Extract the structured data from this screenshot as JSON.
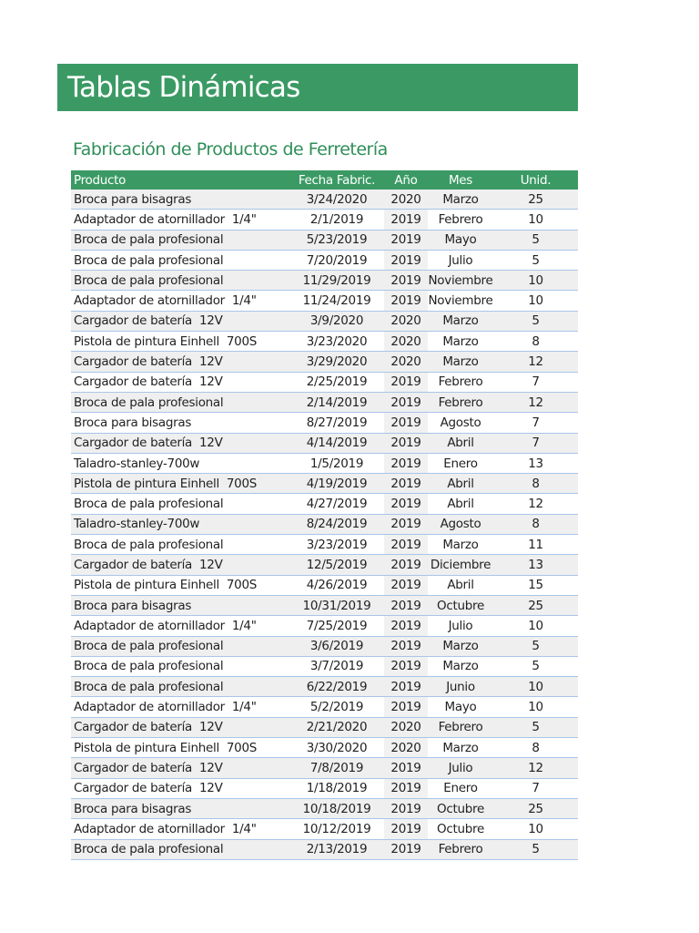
{
  "title": "Tablas Dinámicas",
  "subtitle": "Fabricación de Productos de Ferretería",
  "colors": {
    "accent": "#3b9a64",
    "row_alt": "#efefef",
    "row_border": "#a8c5e8"
  },
  "table": {
    "headers": [
      "Producto",
      "Fecha Fabric.",
      "Año",
      "Mes",
      "Unid."
    ],
    "rows": [
      [
        "Broca para bisagras",
        "3/24/2020",
        "2020",
        "Marzo",
        "25"
      ],
      [
        "Adaptador de atornillador  1/4\"",
        "2/1/2019",
        "2019",
        "Febrero",
        "10"
      ],
      [
        "Broca de pala profesional",
        "5/23/2019",
        "2019",
        "Mayo",
        "5"
      ],
      [
        "Broca de pala profesional",
        "7/20/2019",
        "2019",
        "Julio",
        "5"
      ],
      [
        "Broca de pala profesional",
        "11/29/2019",
        "2019",
        "Noviembre",
        "10"
      ],
      [
        "Adaptador de atornillador  1/4\"",
        "11/24/2019",
        "2019",
        "Noviembre",
        "10"
      ],
      [
        "Cargador de batería  12V",
        "3/9/2020",
        "2020",
        "Marzo",
        "5"
      ],
      [
        "Pistola de pintura Einhell  700S",
        "3/23/2020",
        "2020",
        "Marzo",
        "8"
      ],
      [
        "Cargador de batería  12V",
        "3/29/2020",
        "2020",
        "Marzo",
        "12"
      ],
      [
        "Cargador de batería  12V",
        "2/25/2019",
        "2019",
        "Febrero",
        "7"
      ],
      [
        "Broca de pala profesional",
        "2/14/2019",
        "2019",
        "Febrero",
        "12"
      ],
      [
        "Broca para bisagras",
        "8/27/2019",
        "2019",
        "Agosto",
        "7"
      ],
      [
        "Cargador de batería  12V",
        "4/14/2019",
        "2019",
        "Abril",
        "7"
      ],
      [
        "Taladro-stanley-700w",
        "1/5/2019",
        "2019",
        "Enero",
        "13"
      ],
      [
        "Pistola de pintura Einhell  700S",
        "4/19/2019",
        "2019",
        "Abril",
        "8"
      ],
      [
        "Broca de pala profesional",
        "4/27/2019",
        "2019",
        "Abril",
        "12"
      ],
      [
        "Taladro-stanley-700w",
        "8/24/2019",
        "2019",
        "Agosto",
        "8"
      ],
      [
        "Broca de pala profesional",
        "3/23/2019",
        "2019",
        "Marzo",
        "11"
      ],
      [
        "Cargador de batería  12V",
        "12/5/2019",
        "2019",
        "Diciembre",
        "13"
      ],
      [
        "Pistola de pintura Einhell  700S",
        "4/26/2019",
        "2019",
        "Abril",
        "15"
      ],
      [
        "Broca para bisagras",
        "10/31/2019",
        "2019",
        "Octubre",
        "25"
      ],
      [
        "Adaptador de atornillador  1/4\"",
        "7/25/2019",
        "2019",
        "Julio",
        "10"
      ],
      [
        "Broca de pala profesional",
        "3/6/2019",
        "2019",
        "Marzo",
        "5"
      ],
      [
        "Broca de pala profesional",
        "3/7/2019",
        "2019",
        "Marzo",
        "5"
      ],
      [
        "Broca de pala profesional",
        "6/22/2019",
        "2019",
        "Junio",
        "10"
      ],
      [
        "Adaptador de atornillador  1/4\"",
        "5/2/2019",
        "2019",
        "Mayo",
        "10"
      ],
      [
        "Cargador de batería  12V",
        "2/21/2020",
        "2020",
        "Febrero",
        "5"
      ],
      [
        "Pistola de pintura Einhell  700S",
        "3/30/2020",
        "2020",
        "Marzo",
        "8"
      ],
      [
        "Cargador de batería  12V",
        "7/8/2019",
        "2019",
        "Julio",
        "12"
      ],
      [
        "Cargador de batería  12V",
        "1/18/2019",
        "2019",
        "Enero",
        "7"
      ],
      [
        "Broca para bisagras",
        "10/18/2019",
        "2019",
        "Octubre",
        "25"
      ],
      [
        "Adaptador de atornillador  1/4\"",
        "10/12/2019",
        "2019",
        "Octubre",
        "10"
      ],
      [
        "Broca de pala profesional",
        "2/13/2019",
        "2019",
        "Febrero",
        "5"
      ]
    ]
  }
}
